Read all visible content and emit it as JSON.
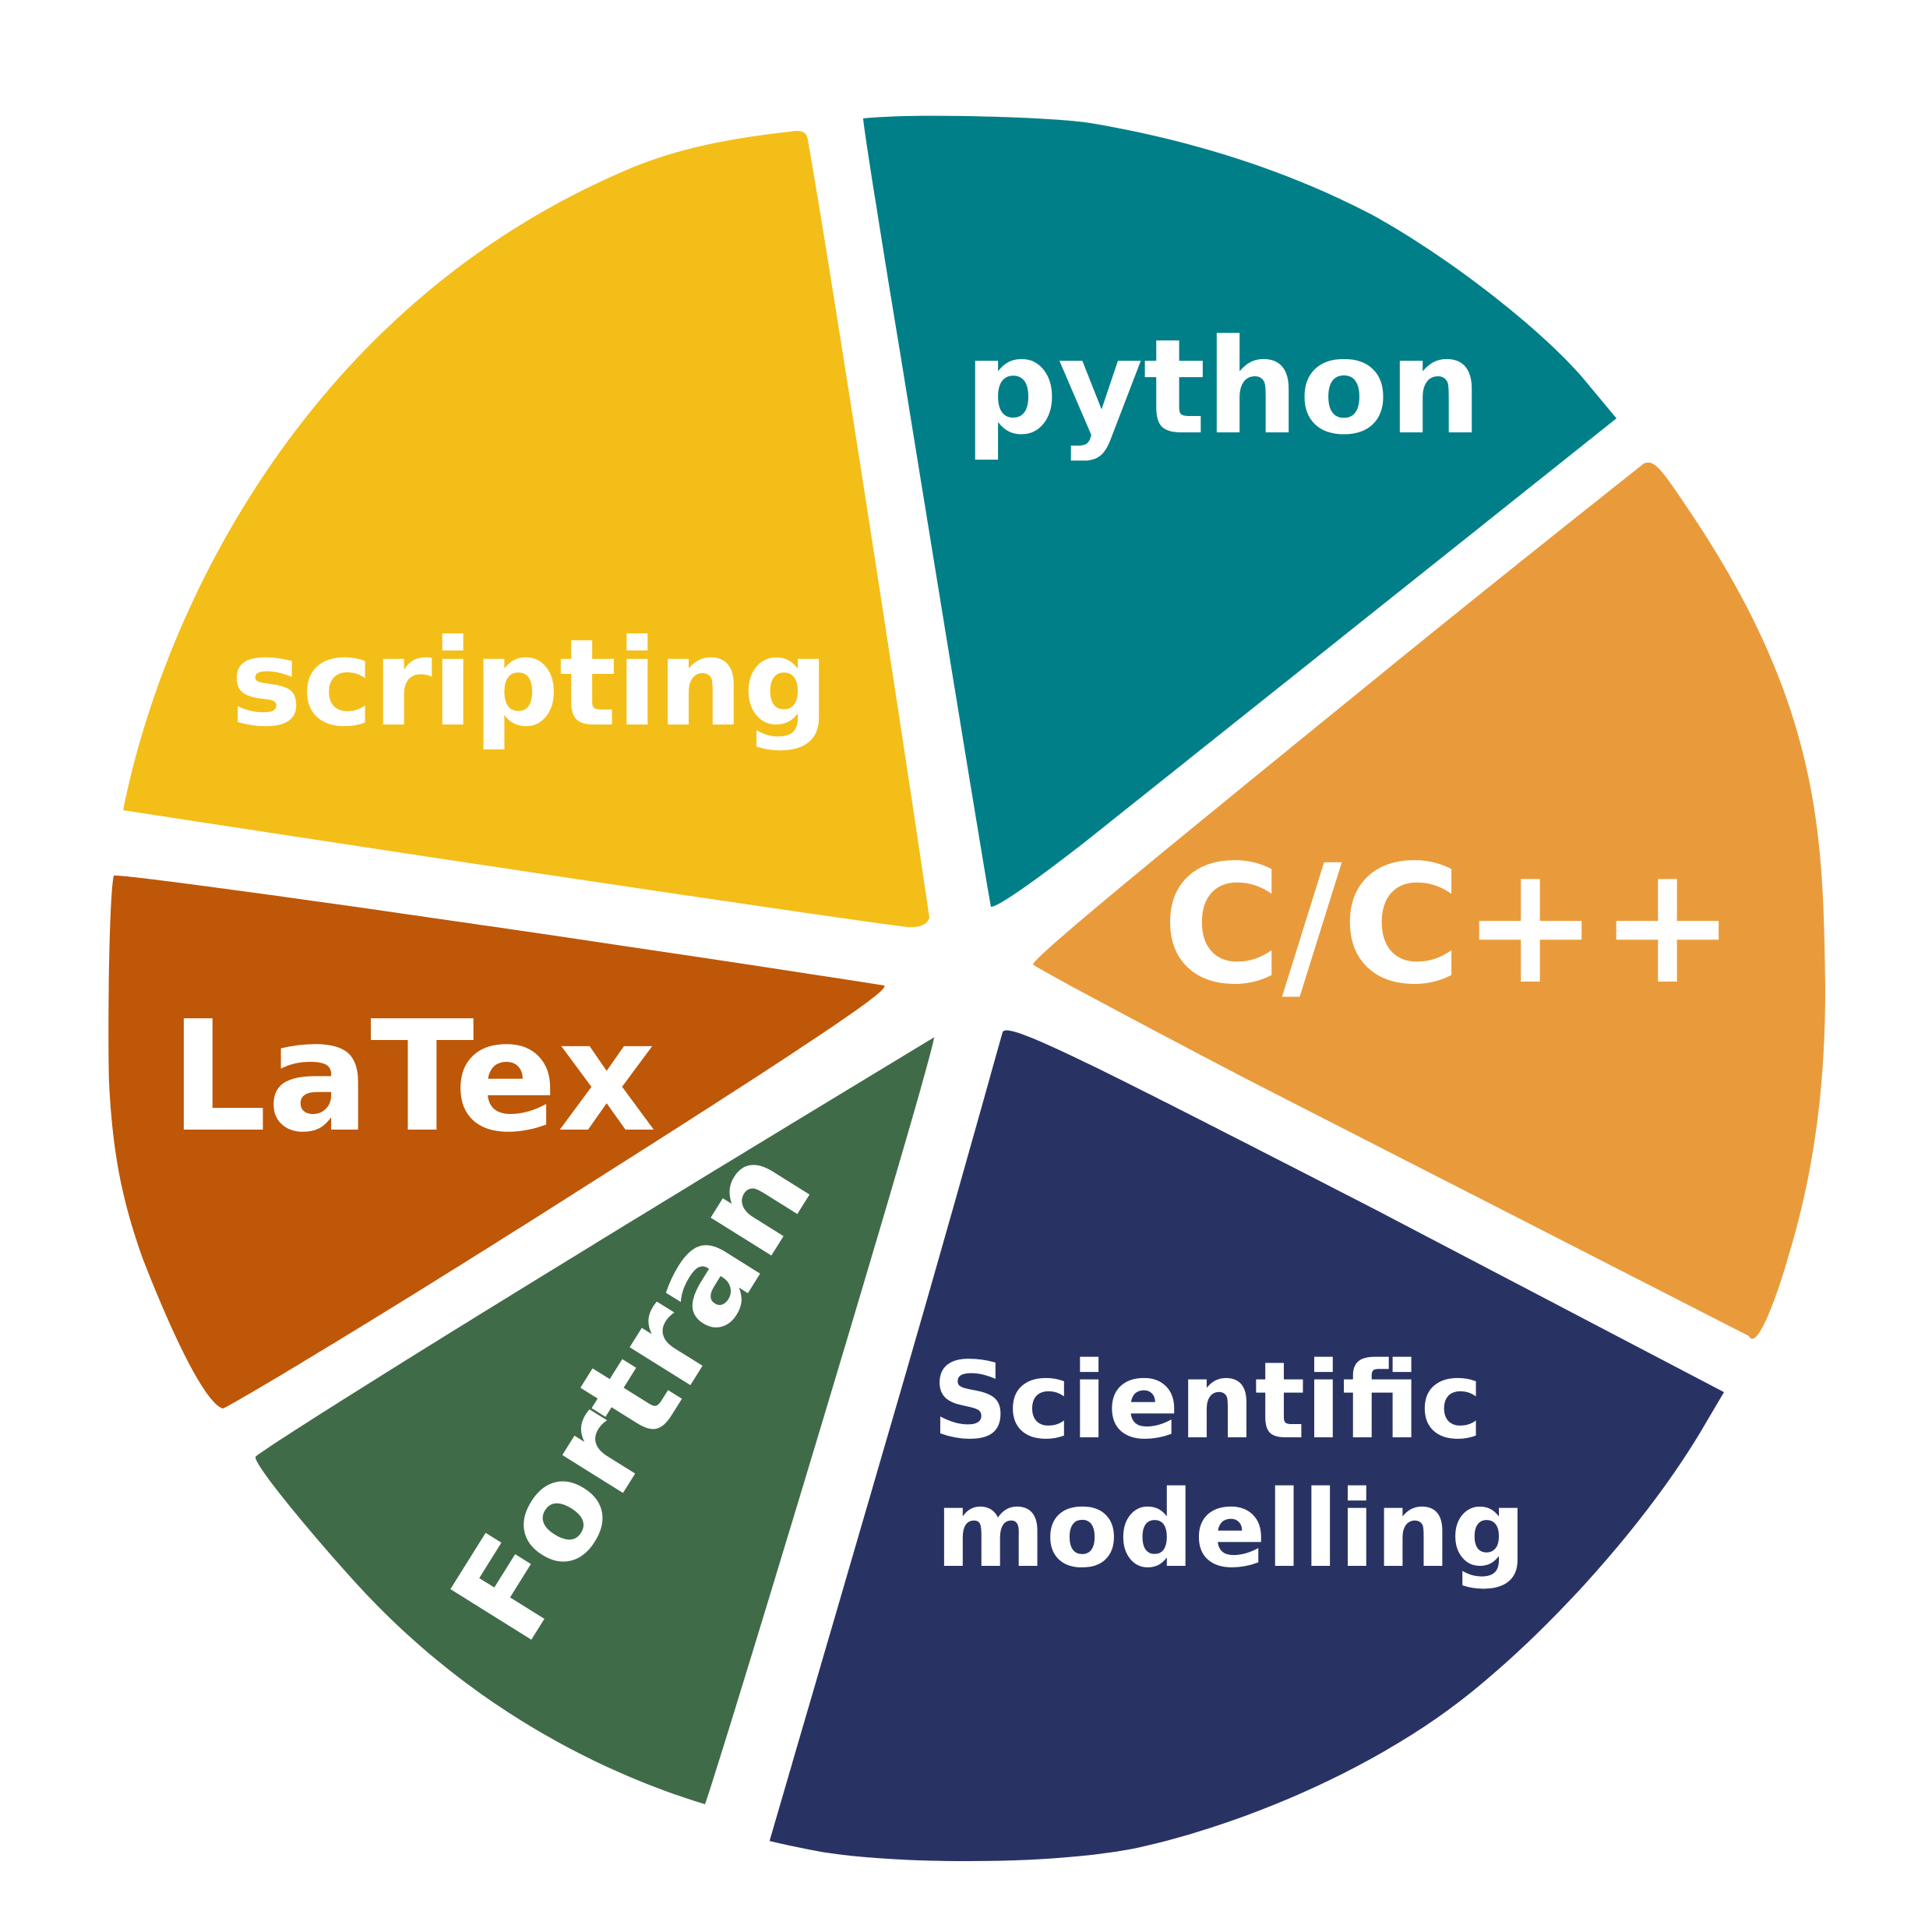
{
  "slices": {
    "python": {
      "label": "python",
      "color": "#017f89"
    },
    "cpp": {
      "label": "C/C++",
      "color": "#e99b3b"
    },
    "scientific": {
      "line1": "Scientific",
      "line2": "modelling",
      "color": "#293363"
    },
    "fortran": {
      "label": "Fortran",
      "color": "#406b48"
    },
    "latex": {
      "label": "LaTex",
      "color": "#be5707"
    },
    "scripting": {
      "label": "scripting",
      "color": "#f4be18"
    }
  },
  "text_color": "#ffffff",
  "background": "#ffffff"
}
